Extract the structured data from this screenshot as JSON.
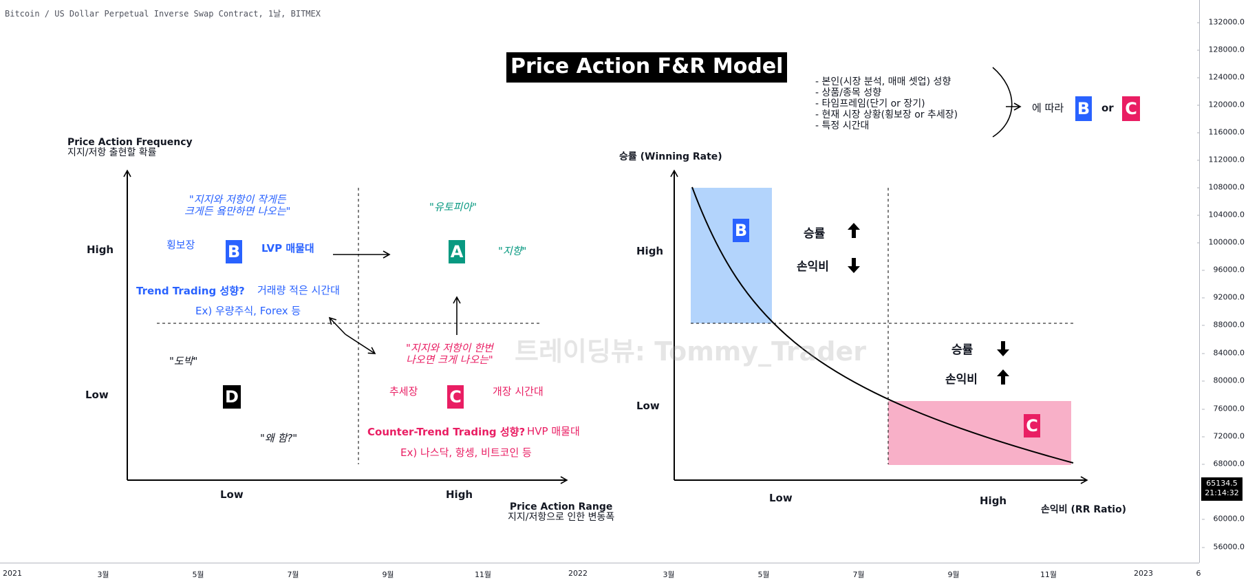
{
  "header": {
    "symbol": "Bitcoin / US Dollar Perpetual Inverse Swap Contract, 1날, BITMEX"
  },
  "title": "Price Action F&R Model",
  "watermark": "트레이딩뷰: Tommy_Trader",
  "price_axis": {
    "ticks": [
      "132000.0",
      "128000.0",
      "124000.0",
      "120000.0",
      "116000.0",
      "112000.0",
      "108000.0",
      "104000.0",
      "100000.0",
      "96000.0",
      "92000.0",
      "88000.0",
      "84000.0",
      "80000.0",
      "76000.0",
      "72000.0",
      "68000.0",
      "60000.0",
      "56000.0"
    ],
    "last_price": "65134.5",
    "countdown": "21:14:32"
  },
  "time_axis": {
    "ticks": [
      "2021",
      "3월",
      "5월",
      "7월",
      "9월",
      "11월",
      "2022",
      "3월",
      "5월",
      "7월",
      "9월",
      "11월",
      "2023",
      "6"
    ]
  },
  "left_diagram": {
    "y_title_en": "Price Action Frequency",
    "y_title_ko": "지지/저항 출현할 확률",
    "x_title_en": "Price Action Range",
    "x_title_ko": "지지/저항으로 인한 변동폭",
    "y_high": "High",
    "y_low": "Low",
    "x_low": "Low",
    "x_high": "High",
    "quote_b_line1": "\"지지와 저항이 작게든",
    "quote_b_line2": "크게든 욬만하면 나오는\"",
    "quote_a": "\"유토피아\"",
    "quote_a2": "\"지향\"",
    "b_side": "횡보장",
    "b_lvp": "LVP 매물대",
    "b_trend": "Trend Trading 성향?",
    "b_time": "거래량 적은 시간대",
    "b_ex": "Ex) 우량주식, Forex 등",
    "quote_d1": "\"도박\"",
    "quote_d2": "\"왜 함?\"",
    "quote_c_line1": "\"지지와 저항이 한번",
    "quote_c_line2": "나오면 크게 나오는\"",
    "c_trend": "추세장",
    "c_open": "개장 시간대",
    "c_counter": "Counter-Trend Trading 성향?",
    "c_hvp": "HVP 매물대",
    "c_ex": "Ex) 나스닥, 항셍, 비트코인 등",
    "box_a": "A",
    "box_b": "B",
    "box_c": "C",
    "box_d": "D"
  },
  "right_diagram": {
    "y_title": "승률 (Winning Rate)",
    "x_title": "손익비 (RR Ratio)",
    "y_high": "High",
    "y_low": "Low",
    "x_low": "Low",
    "x_high": "High",
    "q1_win": "승률",
    "q1_rr": "손익비",
    "q2_win": "승률",
    "q2_rr": "손익비",
    "box_b": "B",
    "box_c": "C"
  },
  "notes": {
    "items": [
      "- 본인(시장 분석, 매매 셋업) 성향",
      "- 상품/종목 성향",
      "- 타임프레임(단기 or 장기)",
      "- 현재 시장 상황(횡보장 or 추세장)",
      "- 특정 시간대"
    ],
    "according": "에 따라",
    "box_b": "B",
    "or": "or",
    "box_c": "C"
  },
  "colors": {
    "blue": "#2962ff",
    "green": "#089981",
    "pink": "#e91e63",
    "blue_fill": "#b3d4fc",
    "pink_fill": "#f8b0c8"
  }
}
